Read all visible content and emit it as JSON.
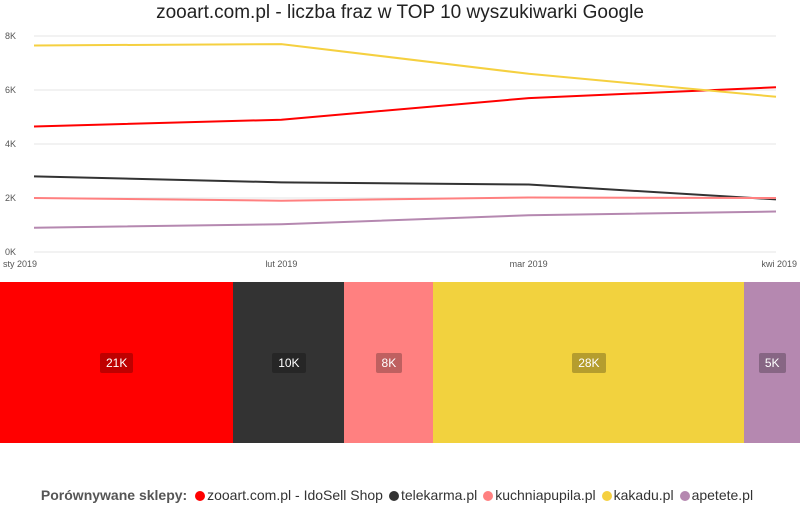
{
  "title": "zooart.com.pl - liczba fraz w TOP 10 wyszukiwarki Google",
  "legend_title": "Porównywane sklepy:",
  "chart_data": [
    {
      "type": "line",
      "title": "zooart.com.pl - liczba fraz w TOP 10 wyszukiwarki Google",
      "categories": [
        "sty 2019",
        "lut 2019",
        "mar 2019",
        "kwi 2019"
      ],
      "y_ticks": [
        "0K",
        "2K",
        "4K",
        "6K",
        "8K"
      ],
      "ylim": [
        0,
        8000
      ],
      "grid": true,
      "series": [
        {
          "name": "zooart.com.pl - IdoSell Shop",
          "color": "#ff0000",
          "values": [
            4650,
            4900,
            5700,
            6100
          ]
        },
        {
          "name": "telekarma.pl",
          "color": "#333333",
          "values": [
            2800,
            2580,
            2500,
            1950
          ]
        },
        {
          "name": "kuchniapupila.pl",
          "color": "#ff8080",
          "values": [
            2000,
            1900,
            2020,
            2000
          ]
        },
        {
          "name": "kakadu.pl",
          "color": "#f5d040",
          "values": [
            7650,
            7700,
            6600,
            5750
          ]
        },
        {
          "name": "apetete.pl",
          "color": "#b588b0",
          "values": [
            900,
            1030,
            1360,
            1500
          ]
        }
      ]
    },
    {
      "type": "treemap",
      "items": [
        {
          "name": "zooart.com.pl - IdoSell Shop",
          "label": "21K",
          "value": 21,
          "color": "#ff0000"
        },
        {
          "name": "telekarma.pl",
          "label": "10K",
          "value": 10,
          "color": "#333333"
        },
        {
          "name": "kuchniapupila.pl",
          "label": "8K",
          "value": 8,
          "color": "#ff8080"
        },
        {
          "name": "kakadu.pl",
          "label": "28K",
          "value": 28,
          "color": "#f2d23e"
        },
        {
          "name": "apetete.pl",
          "label": "5K",
          "value": 5,
          "color": "#b588b0"
        }
      ]
    }
  ],
  "legend": [
    {
      "label": "zooart.com.pl - IdoSell Shop",
      "color": "#ff0000"
    },
    {
      "label": "telekarma.pl",
      "color": "#333333"
    },
    {
      "label": "kuchniapupila.pl",
      "color": "#ff8080"
    },
    {
      "label": "kakadu.pl",
      "color": "#f5d040"
    },
    {
      "label": "apetete.pl",
      "color": "#b588b0"
    }
  ]
}
